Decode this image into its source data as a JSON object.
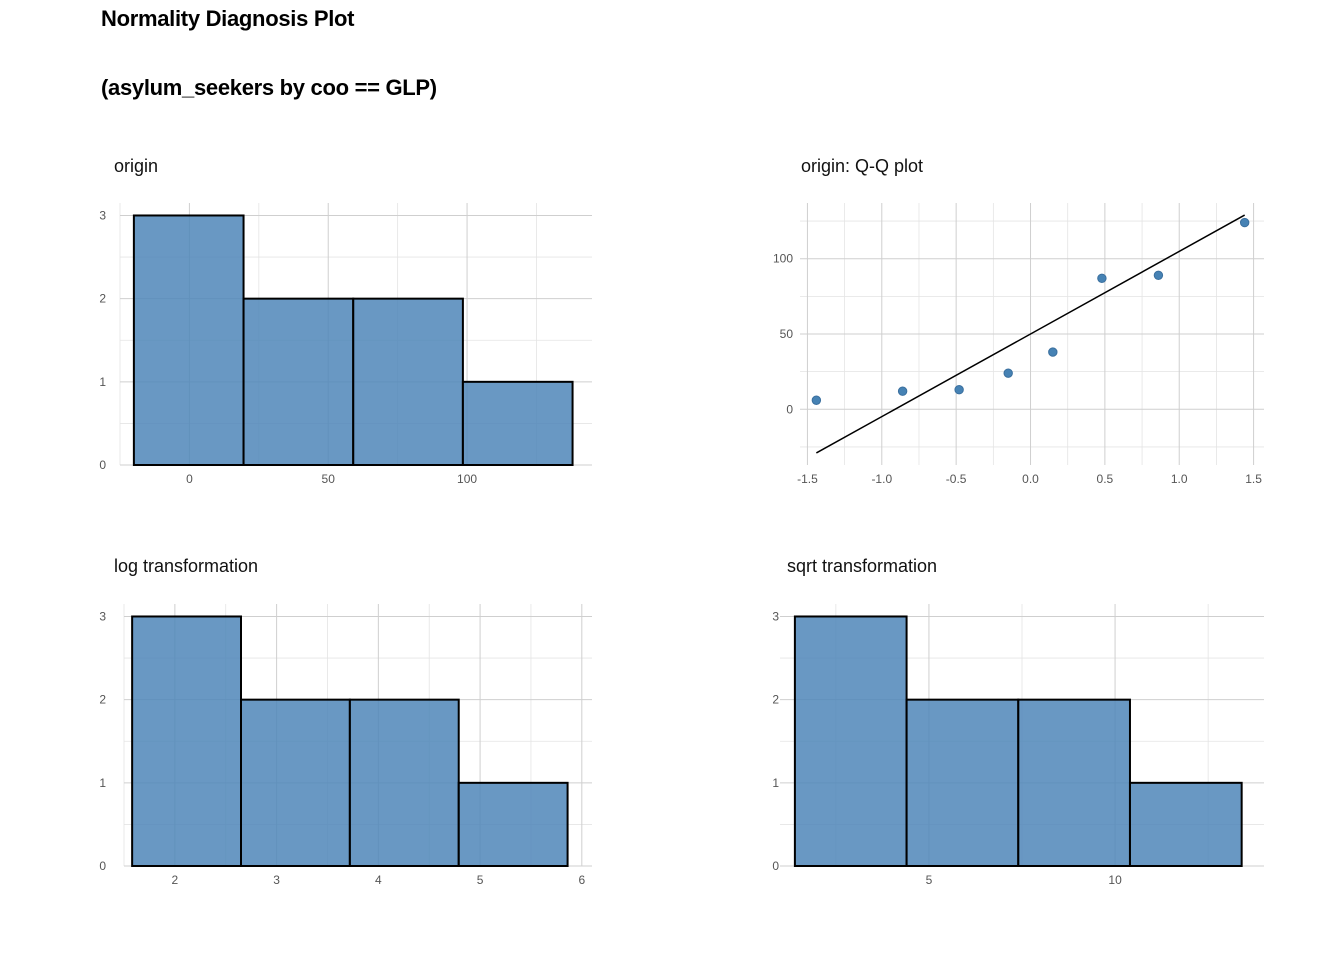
{
  "title": "Normality Diagnosis Plot",
  "subtitle": "(asylum_seekers by coo == GLP)",
  "colors": {
    "bar_fill": "#4f86b8",
    "bar_stroke": "#000000",
    "point": "#4682b4",
    "grid": "#cfcfcf"
  },
  "chart_data": [
    {
      "type": "bar",
      "title": "origin",
      "bins": [
        {
          "x0": -20,
          "x1": 19.5,
          "count": 3
        },
        {
          "x0": 19.5,
          "x1": 59,
          "count": 2
        },
        {
          "x0": 59,
          "x1": 98.5,
          "count": 2
        },
        {
          "x0": 98.5,
          "x1": 138,
          "count": 1
        }
      ],
      "xlim": [
        -25,
        145
      ],
      "ylim": [
        0,
        3.15
      ],
      "xticks": [
        0,
        50,
        100
      ],
      "yticks": [
        0,
        1,
        2,
        3
      ],
      "xlabel": "",
      "ylabel": "",
      "grid": true
    },
    {
      "type": "scatter",
      "title": "origin: Q-Q plot",
      "x": [
        -1.44,
        -0.86,
        -0.48,
        -0.15,
        0.15,
        0.48,
        0.86,
        1.44
      ],
      "y": [
        6,
        12,
        13,
        24,
        38,
        87,
        89,
        124
      ],
      "line": {
        "x": [
          -1.44,
          1.44
        ],
        "y": [
          -29,
          129
        ]
      },
      "xlim": [
        -1.55,
        1.57
      ],
      "ylim": [
        -37,
        137
      ],
      "xticks": [
        -1.5,
        -1.0,
        -0.5,
        0.0,
        0.5,
        1.0,
        1.5
      ],
      "xtick_labels": [
        "-1.5",
        "-1.0",
        "-0.5",
        "0.0",
        "0.5",
        "1.0",
        "1.5"
      ],
      "yticks": [
        0,
        50,
        100
      ],
      "xlabel": "",
      "ylabel": "",
      "grid": true
    },
    {
      "type": "bar",
      "title": "log transformation",
      "bins": [
        {
          "x0": 1.58,
          "x1": 2.65,
          "count": 3
        },
        {
          "x0": 2.65,
          "x1": 3.72,
          "count": 2
        },
        {
          "x0": 3.72,
          "x1": 4.79,
          "count": 2
        },
        {
          "x0": 4.79,
          "x1": 5.86,
          "count": 1
        }
      ],
      "xlim": [
        1.5,
        6.1
      ],
      "ylim": [
        0,
        3.15
      ],
      "xticks": [
        2,
        3,
        4,
        5,
        6
      ],
      "yticks": [
        0,
        1,
        2,
        3
      ],
      "xlabel": "",
      "ylabel": "",
      "grid": true
    },
    {
      "type": "bar",
      "title": "sqrt transformation",
      "bins": [
        {
          "x0": 1.4,
          "x1": 4.4,
          "count": 3
        },
        {
          "x0": 4.4,
          "x1": 7.4,
          "count": 2
        },
        {
          "x0": 7.4,
          "x1": 10.4,
          "count": 2
        },
        {
          "x0": 10.4,
          "x1": 13.4,
          "count": 1
        }
      ],
      "xlim": [
        1.0,
        14.0
      ],
      "ylim": [
        0,
        3.15
      ],
      "xticks": [
        5,
        10
      ],
      "yticks": [
        0,
        1,
        2,
        3
      ],
      "xlabel": "",
      "ylabel": "",
      "grid": true
    }
  ]
}
